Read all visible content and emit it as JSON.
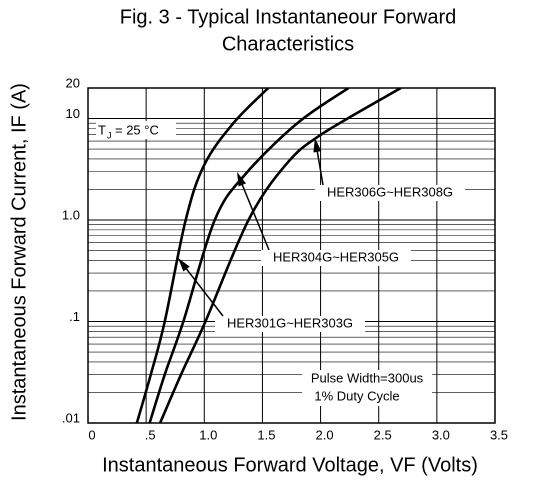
{
  "chart_data": {
    "type": "line",
    "title": [
      "Fig. 3 - Typical Instantaneour Forward",
      "Characteristics"
    ],
    "x_label": "Instantaneous Forward Voltage, VF (Volts)",
    "y_label": "Instantaneous Forward Current, IF (A)",
    "y_log": true,
    "grid": true,
    "color": "#000000",
    "xlim": [
      0,
      3.5
    ],
    "xticks": [
      0,
      {
        "value": 0.5,
        "label": ".5"
      },
      {
        "value": 1,
        "label": "1.0"
      },
      1.5,
      {
        "value": 2,
        "label": "2.0"
      },
      2.5,
      {
        "value": 3,
        "label": "3.0"
      },
      3.5
    ],
    "ylim": [
      0.01,
      20
    ],
    "yticks": [
      {
        "value": 0.01,
        "label": ".01"
      },
      {
        "value": 0.1,
        "label": ".1"
      },
      {
        "value": 1,
        "label": "1.0"
      },
      10,
      20
    ],
    "series": [
      {
        "name": "HER301G~HER303G",
        "x": [
          0.42,
          0.54,
          0.66,
          0.84,
          1.0,
          1.25,
          1.55
        ],
        "values": [
          0.01,
          0.03,
          0.1,
          1.0,
          3.5,
          9,
          20
        ]
      },
      {
        "name": "HER304G~HER305G",
        "x": [
          0.53,
          0.66,
          0.82,
          1.09,
          1.35,
          1.8,
          2.24
        ],
        "values": [
          0.01,
          0.03,
          0.1,
          1.0,
          2.8,
          9,
          20
        ]
      },
      {
        "name": "HER306G~HER308G",
        "x": [
          0.62,
          0.8,
          1.01,
          1.38,
          1.7,
          2.0,
          2.69
        ],
        "values": [
          0.01,
          0.03,
          0.1,
          1.0,
          3.5,
          6.9,
          20
        ]
      }
    ],
    "annotations": {
      "tj_symbol": "T",
      "tj_subscript": "J",
      "tj_value": "= 25  °C",
      "pulse": "Pulse Width=300us",
      "duty": "1% Duty Cycle"
    }
  }
}
